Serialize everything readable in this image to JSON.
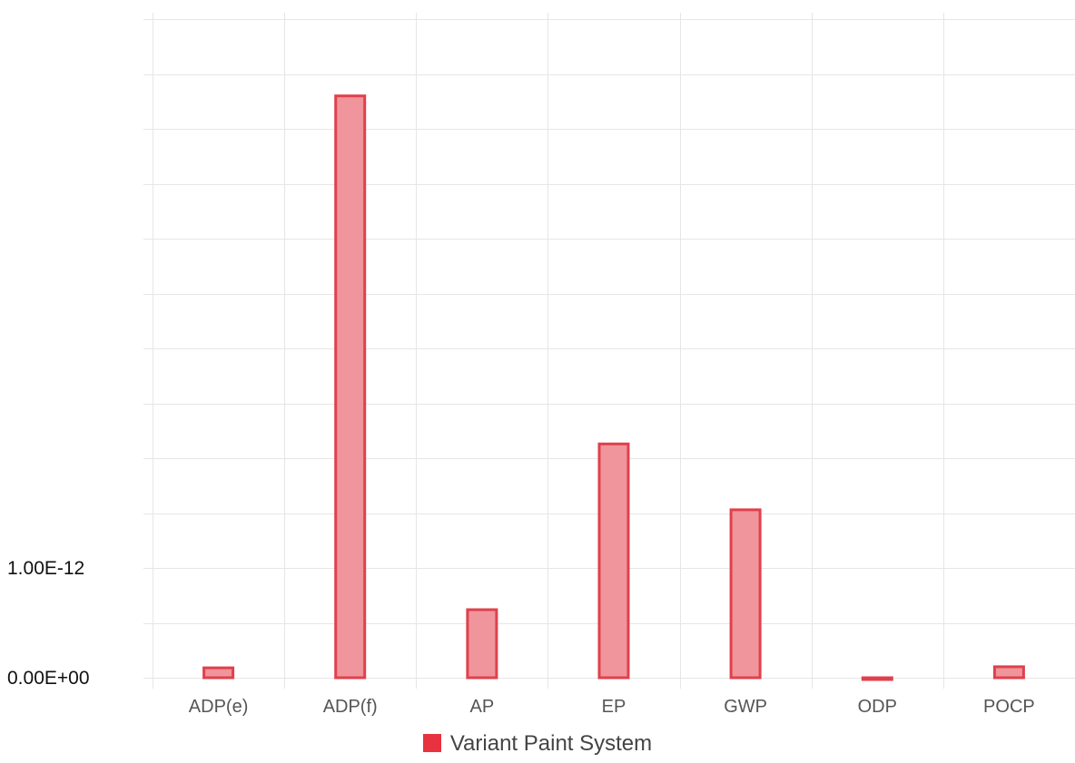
{
  "chart_data": {
    "type": "bar",
    "categories": [
      "ADP(e)",
      "ADP(f)",
      "AP",
      "EP",
      "GWP",
      "ODP",
      "POCP"
    ],
    "series": [
      {
        "name": "Variant Paint System",
        "values": [
          9e-14,
          5.3e-12,
          6.2e-13,
          2.13e-12,
          1.53e-12,
          -2e-15,
          1e-13
        ]
      }
    ],
    "yticks": [
      {
        "value": 0,
        "label": "0.00E+00"
      },
      {
        "value": 1e-12,
        "label": "1.00E-12"
      }
    ],
    "ylim": [
      -6e-14,
      5.95e-12
    ],
    "gridline_step": 5e-13,
    "grid": true,
    "legend_position": "bottom",
    "colors": {
      "bar_fill": "#f0959c",
      "bar_stroke": "#e0404c",
      "swatch": "#e8323f",
      "grid": "#e6e6e6"
    }
  }
}
